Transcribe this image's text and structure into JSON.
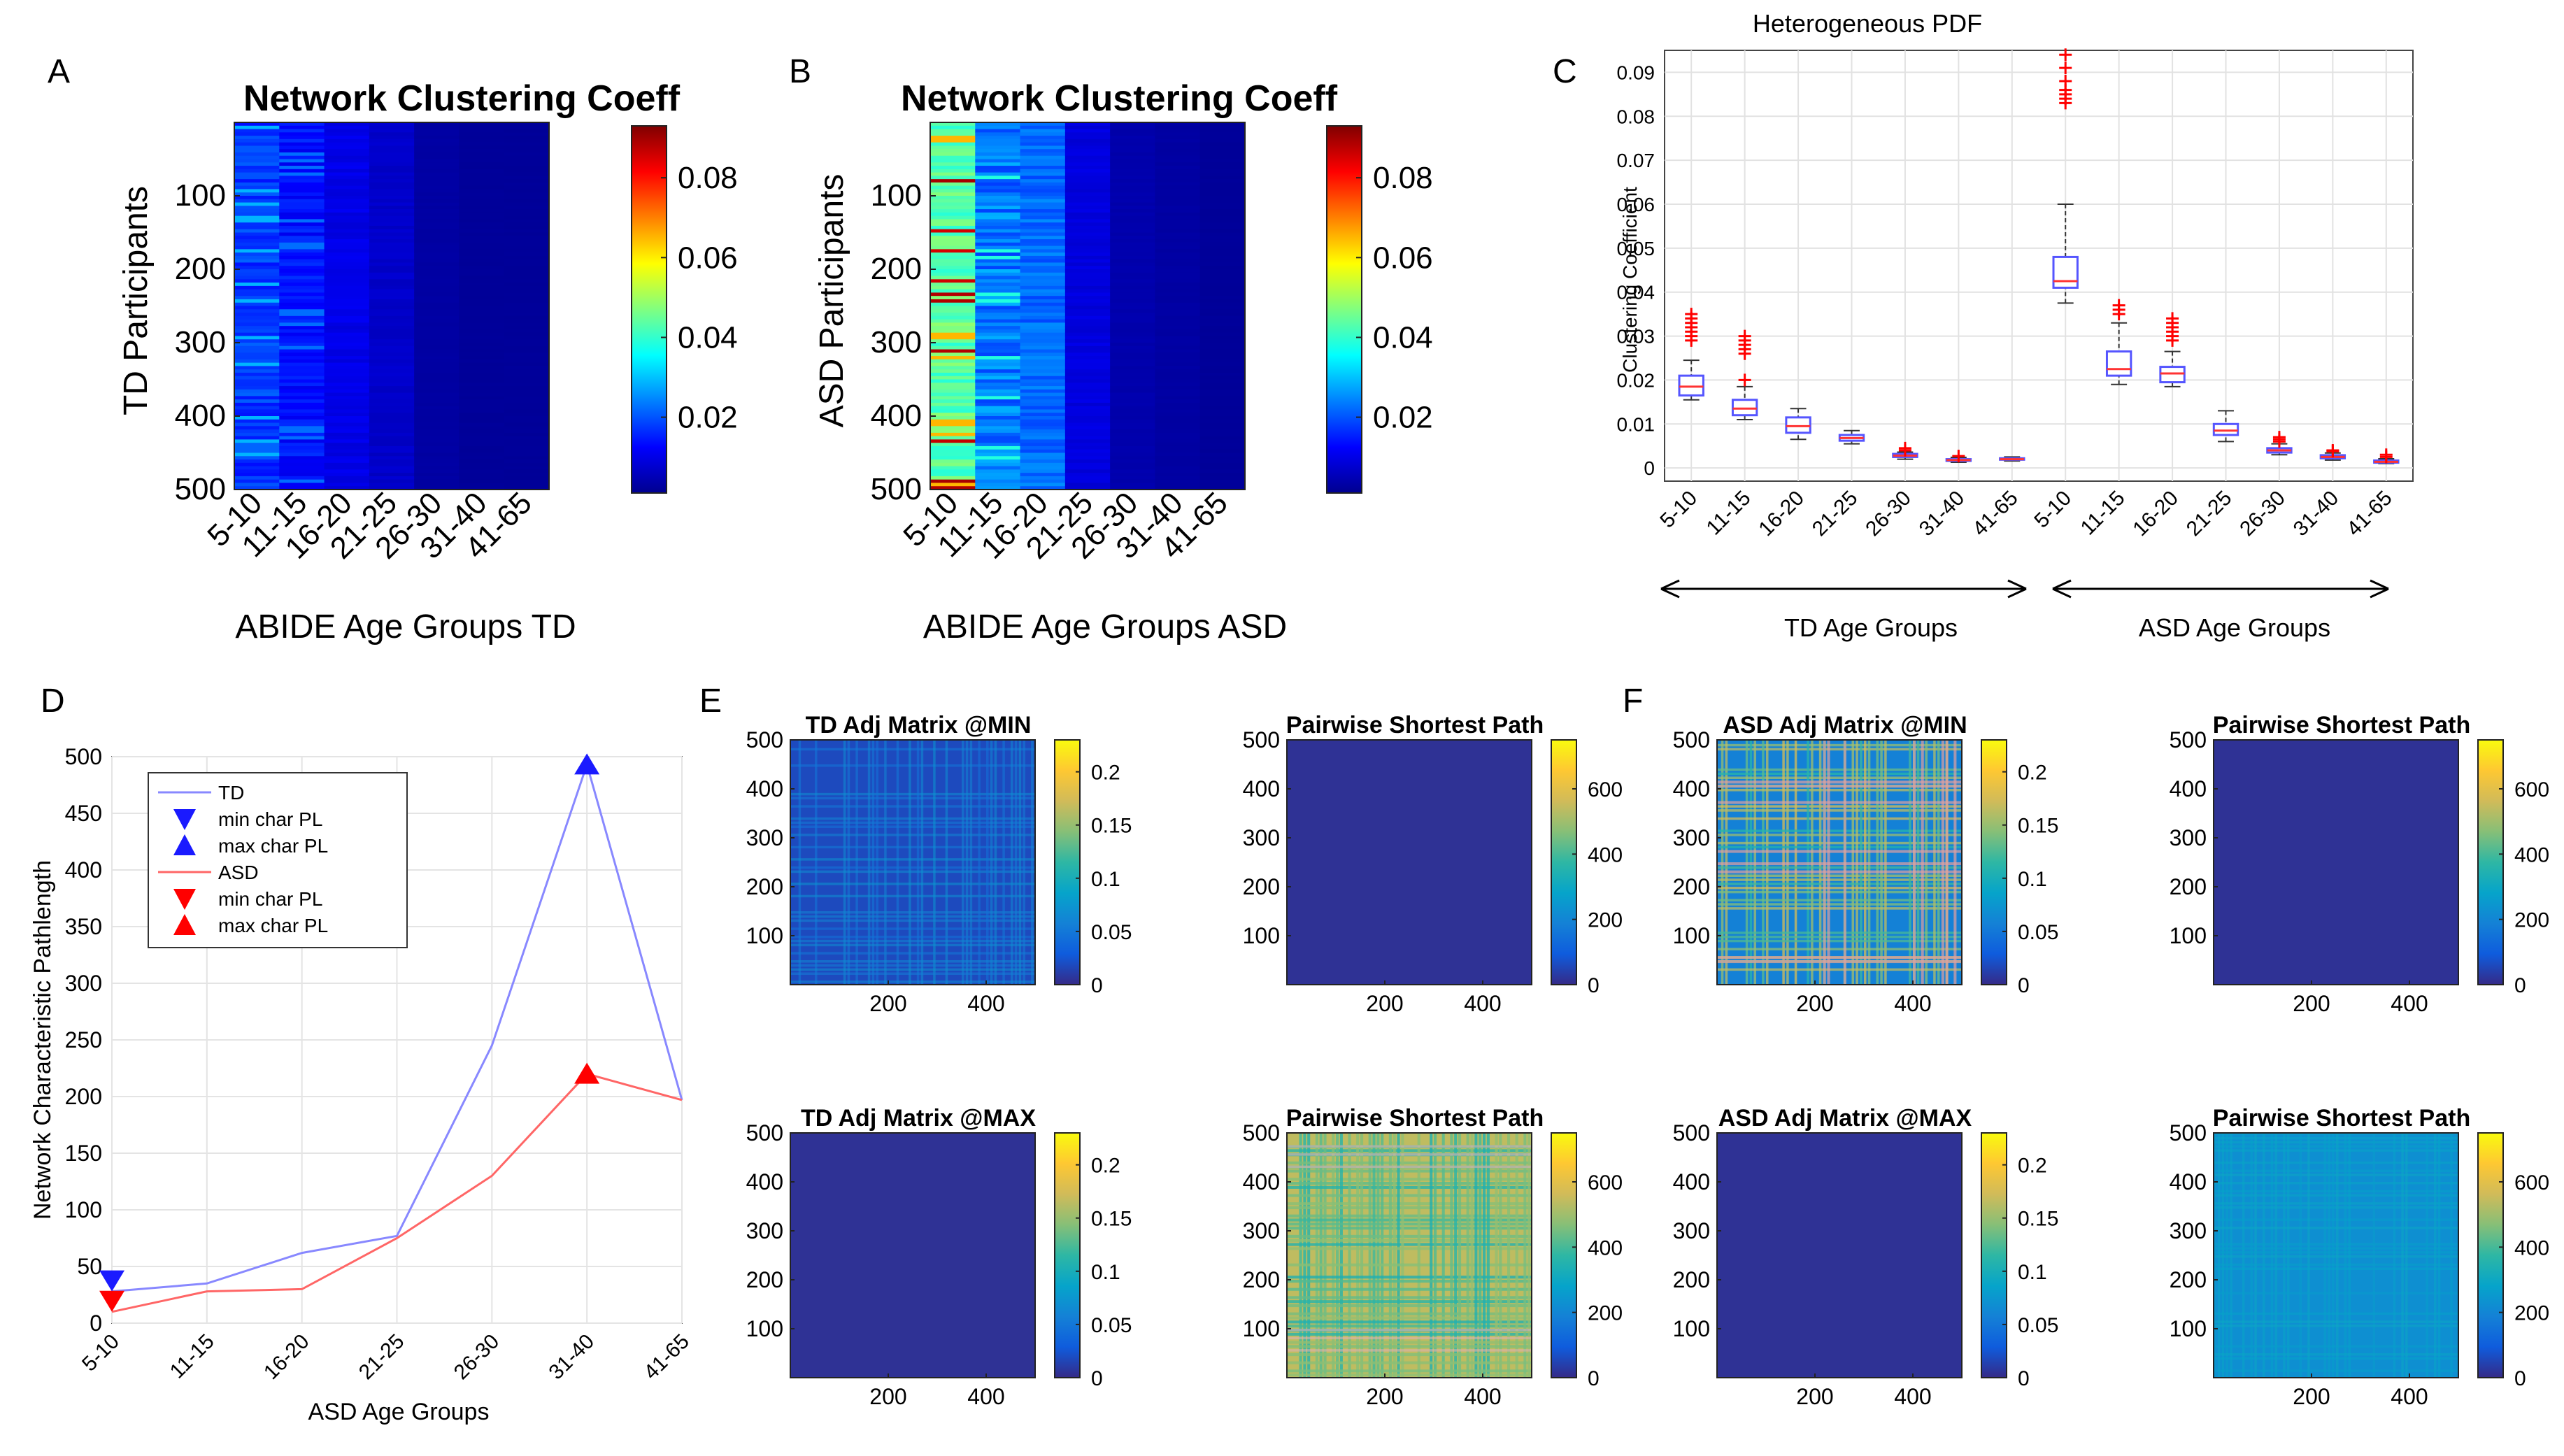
{
  "panel_letters": [
    "A",
    "B",
    "C",
    "D",
    "E",
    "F"
  ],
  "colors": {
    "jet": [
      "#00008f",
      "#0000ff",
      "#0080ff",
      "#00ffff",
      "#80ff80",
      "#ffff00",
      "#ff8000",
      "#ff0000",
      "#800000"
    ],
    "parula": [
      "#352a87",
      "#0f5cdd",
      "#1481d6",
      "#06a4ca",
      "#2eb7a4",
      "#87bf77",
      "#d1bb59",
      "#fec832",
      "#f9fb0e"
    ],
    "td_line": "#8888ff",
    "asd_line": "#ff6666",
    "td_marker": "#1a1aff",
    "asd_marker": "#ff0000",
    "box": "#5555ff",
    "outlier": "#ff0000",
    "median": "#ff3333"
  },
  "chart_data": [
    {
      "id": "A",
      "type": "heatmap",
      "title": "Network Clustering Coeff",
      "xlabel": "ABIDE Age Groups TD",
      "ylabel": "TD Participants",
      "categories": [
        "5-10",
        "11-15",
        "16-20",
        "21-25",
        "26-30",
        "31-40",
        "41-65"
      ],
      "yticks": [
        100,
        200,
        300,
        400,
        500
      ],
      "ylim": [
        0,
        500
      ],
      "group_mean_values": [
        0.018,
        0.014,
        0.01,
        0.007,
        0.003,
        0.002,
        0.002
      ],
      "colorbar": {
        "ticks": [
          "0.02",
          "0.04",
          "0.06",
          "0.08"
        ],
        "range": [
          0.001,
          0.093
        ]
      }
    },
    {
      "id": "B",
      "type": "heatmap",
      "title": "Network Clustering Coeff",
      "xlabel": "ABIDE Age Groups ASD",
      "ylabel": "ASD Participants",
      "categories": [
        "5-10",
        "11-15",
        "16-20",
        "21-25",
        "26-30",
        "31-40",
        "41-65"
      ],
      "yticks": [
        100,
        200,
        300,
        400,
        500
      ],
      "ylim": [
        0,
        500
      ],
      "group_mean_values": [
        0.045,
        0.024,
        0.022,
        0.009,
        0.004,
        0.003,
        0.002
      ],
      "colorbar": {
        "ticks": [
          "0.02",
          "0.04",
          "0.06",
          "0.08"
        ],
        "range": [
          0.001,
          0.093
        ]
      }
    },
    {
      "id": "C",
      "type": "box",
      "title": "Heterogeneous PDF",
      "ylabel": "Clustering Coefficient",
      "ylim": [
        -0.003,
        0.095
      ],
      "yticks": [
        "0",
        "0.01",
        "0.02",
        "0.03",
        "0.04",
        "0.05",
        "0.06",
        "0.07",
        "0.08",
        "0.09"
      ],
      "categories": [
        "5-10",
        "11-15",
        "16-20",
        "21-25",
        "26-30",
        "31-40",
        "41-65",
        "5-10",
        "11-15",
        "16-20",
        "21-25",
        "26-30",
        "31-40",
        "41-65"
      ],
      "group_labels": [
        "TD Age Groups",
        "ASD Age Groups"
      ],
      "boxes": [
        {
          "q1": 0.0165,
          "median": 0.0185,
          "q3": 0.021,
          "lo": 0.0155,
          "hi": 0.0245,
          "outliers": [
            0.029,
            0.03,
            0.031,
            0.032,
            0.033,
            0.034,
            0.035
          ]
        },
        {
          "q1": 0.012,
          "median": 0.0135,
          "q3": 0.0155,
          "lo": 0.011,
          "hi": 0.0185,
          "outliers": [
            0.02,
            0.026,
            0.027,
            0.028,
            0.029,
            0.03
          ]
        },
        {
          "q1": 0.008,
          "median": 0.0095,
          "q3": 0.0115,
          "lo": 0.0065,
          "hi": 0.0135,
          "outliers": []
        },
        {
          "q1": 0.0062,
          "median": 0.0068,
          "q3": 0.0075,
          "lo": 0.0055,
          "hi": 0.0085,
          "outliers": []
        },
        {
          "q1": 0.0025,
          "median": 0.0028,
          "q3": 0.0032,
          "lo": 0.002,
          "hi": 0.0036,
          "outliers": [
            0.004,
            0.0045
          ]
        },
        {
          "q1": 0.0016,
          "median": 0.0018,
          "q3": 0.002,
          "lo": 0.0013,
          "hi": 0.0024,
          "outliers": [
            0.0027
          ]
        },
        {
          "q1": 0.0019,
          "median": 0.002,
          "q3": 0.0022,
          "lo": 0.0016,
          "hi": 0.0025,
          "outliers": []
        },
        {
          "q1": 0.041,
          "median": 0.0425,
          "q3": 0.048,
          "lo": 0.0375,
          "hi": 0.06,
          "outliers": [
            0.083,
            0.084,
            0.085,
            0.086,
            0.088,
            0.091,
            0.094
          ]
        },
        {
          "q1": 0.021,
          "median": 0.0225,
          "q3": 0.0265,
          "lo": 0.019,
          "hi": 0.033,
          "outliers": [
            0.035,
            0.036,
            0.037
          ]
        },
        {
          "q1": 0.0195,
          "median": 0.0215,
          "q3": 0.023,
          "lo": 0.0185,
          "hi": 0.0265,
          "outliers": [
            0.029,
            0.03,
            0.031,
            0.032,
            0.033,
            0.034
          ]
        },
        {
          "q1": 0.0075,
          "median": 0.0085,
          "q3": 0.01,
          "lo": 0.006,
          "hi": 0.013,
          "outliers": []
        },
        {
          "q1": 0.0035,
          "median": 0.004,
          "q3": 0.0045,
          "lo": 0.003,
          "hi": 0.0055,
          "outliers": [
            0.006,
            0.0065,
            0.007
          ]
        },
        {
          "q1": 0.0022,
          "median": 0.0025,
          "q3": 0.0029,
          "lo": 0.0018,
          "hi": 0.0034,
          "outliers": [
            0.0038,
            0.004
          ]
        },
        {
          "q1": 0.0012,
          "median": 0.0014,
          "q3": 0.0017,
          "lo": 0.001,
          "hi": 0.0021,
          "outliers": [
            0.0025,
            0.003
          ]
        }
      ]
    },
    {
      "id": "D",
      "type": "line",
      "xlabel": "ASD Age Groups",
      "ylabel": "Network Characteristic Pathlength",
      "categories": [
        "5-10",
        "11-15",
        "16-20",
        "21-25",
        "26-30",
        "31-40",
        "41-65"
      ],
      "ylim": [
        0,
        500
      ],
      "yticks": [
        0,
        50,
        100,
        150,
        200,
        250,
        300,
        350,
        400,
        450,
        500
      ],
      "series": [
        {
          "name": "TD",
          "values": [
            28,
            35,
            62,
            77,
            245,
            493,
            197
          ],
          "min_index": 0,
          "max_index": 5
        },
        {
          "name": "ASD",
          "values": [
            10,
            28,
            30,
            75,
            130,
            220,
            197
          ],
          "min_index": 0,
          "max_index": 5
        }
      ],
      "legend": [
        "TD",
        "min char PL",
        "max char PL",
        "ASD",
        "min char PL",
        "max char PL"
      ]
    },
    {
      "id": "E1",
      "type": "heatmap",
      "title": "TD Adj Matrix @MIN",
      "pattern": "grid",
      "base": 0.08,
      "yticks": [
        "100",
        "200",
        "300",
        "400",
        "500"
      ],
      "xticks": [
        "200",
        "400"
      ],
      "colorbar": {
        "ticks": [
          "0",
          "0.05",
          "0.1",
          "0.15",
          "0.2"
        ],
        "max": 0.23
      }
    },
    {
      "id": "E2",
      "type": "heatmap",
      "title": "Pairwise Shortest Path",
      "pattern": "uniform",
      "base": 0.02,
      "yticks": [
        "100",
        "200",
        "300",
        "400",
        "500"
      ],
      "xticks": [
        "200",
        "400"
      ],
      "colorbar": {
        "ticks": [
          "0",
          "200",
          "400",
          "600"
        ],
        "max": 750
      }
    },
    {
      "id": "E3",
      "type": "heatmap",
      "title": "TD Adj Matrix @MAX",
      "pattern": "uniform",
      "base": 0.02,
      "yticks": [
        "100",
        "200",
        "300",
        "400",
        "500"
      ],
      "xticks": [
        "200",
        "400"
      ],
      "colorbar": {
        "ticks": [
          "0",
          "0.05",
          "0.1",
          "0.15",
          "0.2"
        ],
        "max": 0.23
      }
    },
    {
      "id": "E4",
      "type": "heatmap",
      "title": "Pairwise Shortest Path",
      "pattern": "stripes",
      "base": 0.72,
      "yticks": [
        "100",
        "200",
        "300",
        "400",
        "500"
      ],
      "xticks": [
        "200",
        "400"
      ],
      "colorbar": {
        "ticks": [
          "0",
          "200",
          "400",
          "600"
        ],
        "max": 750
      }
    },
    {
      "id": "F1",
      "type": "heatmap",
      "title": "ASD Adj Matrix @MIN",
      "pattern": "grid_strong",
      "base": 0.25,
      "yticks": [
        "100",
        "200",
        "300",
        "400",
        "500"
      ],
      "xticks": [
        "200",
        "400"
      ],
      "colorbar": {
        "ticks": [
          "0",
          "0.05",
          "0.1",
          "0.15",
          "0.2"
        ],
        "max": 0.23
      }
    },
    {
      "id": "F2",
      "type": "heatmap",
      "title": "Pairwise Shortest Path",
      "pattern": "uniform",
      "base": 0.02,
      "yticks": [
        "100",
        "200",
        "300",
        "400",
        "500"
      ],
      "xticks": [
        "200",
        "400"
      ],
      "colorbar": {
        "ticks": [
          "0",
          "200",
          "400",
          "600"
        ],
        "max": 750
      }
    },
    {
      "id": "F3",
      "type": "heatmap",
      "title": "ASD Adj Matrix @MAX",
      "pattern": "uniform",
      "base": 0.02,
      "yticks": [
        "100",
        "200",
        "300",
        "400",
        "500"
      ],
      "xticks": [
        "200",
        "400"
      ],
      "colorbar": {
        "ticks": [
          "0",
          "0.05",
          "0.1",
          "0.15",
          "0.2"
        ],
        "max": 0.23
      }
    },
    {
      "id": "F4",
      "type": "heatmap",
      "title": "Pairwise Shortest Path",
      "pattern": "light_grid",
      "base": 0.3,
      "yticks": [
        "100",
        "200",
        "300",
        "400",
        "500"
      ],
      "xticks": [
        "200",
        "400"
      ],
      "colorbar": {
        "ticks": [
          "0",
          "200",
          "400",
          "600"
        ],
        "max": 750
      }
    }
  ]
}
